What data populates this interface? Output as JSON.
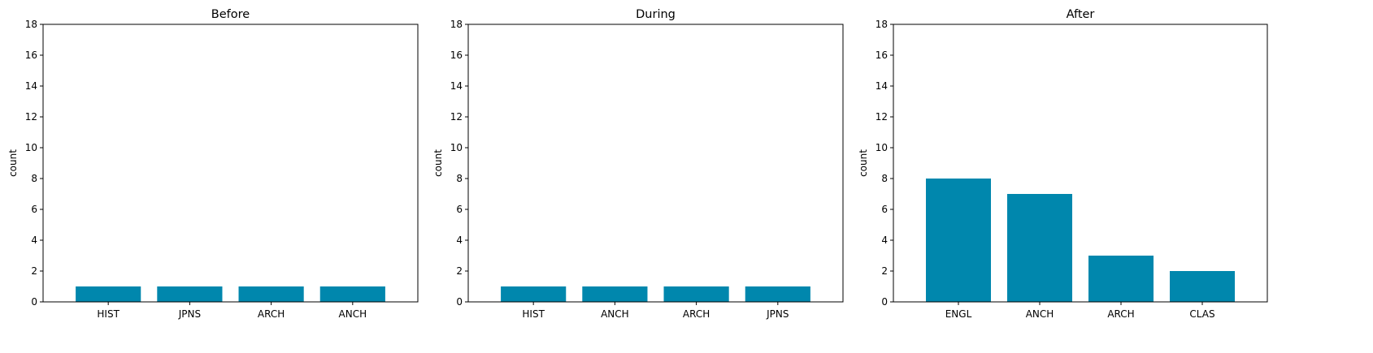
{
  "figure": {
    "bar_color": "#0087ad",
    "axes_color": "#000000",
    "background": "#ffffff"
  },
  "chart_data": [
    {
      "type": "bar",
      "title": "Before",
      "xlabel": "",
      "ylabel": "count",
      "ylim": [
        0,
        18
      ],
      "yticks": [
        "0",
        "2",
        "4",
        "6",
        "8",
        "10",
        "12",
        "14",
        "16",
        "18"
      ],
      "categories": [
        "HIST",
        "JPNS",
        "ARCH",
        "ANCH"
      ],
      "values": [
        1,
        1,
        1,
        1
      ],
      "grid": false
    },
    {
      "type": "bar",
      "title": "During",
      "xlabel": "",
      "ylabel": "count",
      "ylim": [
        0,
        18
      ],
      "yticks": [
        "0",
        "2",
        "4",
        "6",
        "8",
        "10",
        "12",
        "14",
        "16",
        "18"
      ],
      "categories": [
        "HIST",
        "ANCH",
        "ARCH",
        "JPNS"
      ],
      "values": [
        1,
        1,
        1,
        1
      ],
      "grid": false
    },
    {
      "type": "bar",
      "title": "After",
      "xlabel": "",
      "ylabel": "count",
      "ylim": [
        0,
        18
      ],
      "yticks": [
        "0",
        "2",
        "4",
        "6",
        "8",
        "10",
        "12",
        "14",
        "16",
        "18"
      ],
      "categories": [
        "ENGL",
        "ANCH",
        "ARCH",
        "CLAS"
      ],
      "values": [
        8,
        7,
        3,
        2
      ],
      "grid": false
    }
  ]
}
